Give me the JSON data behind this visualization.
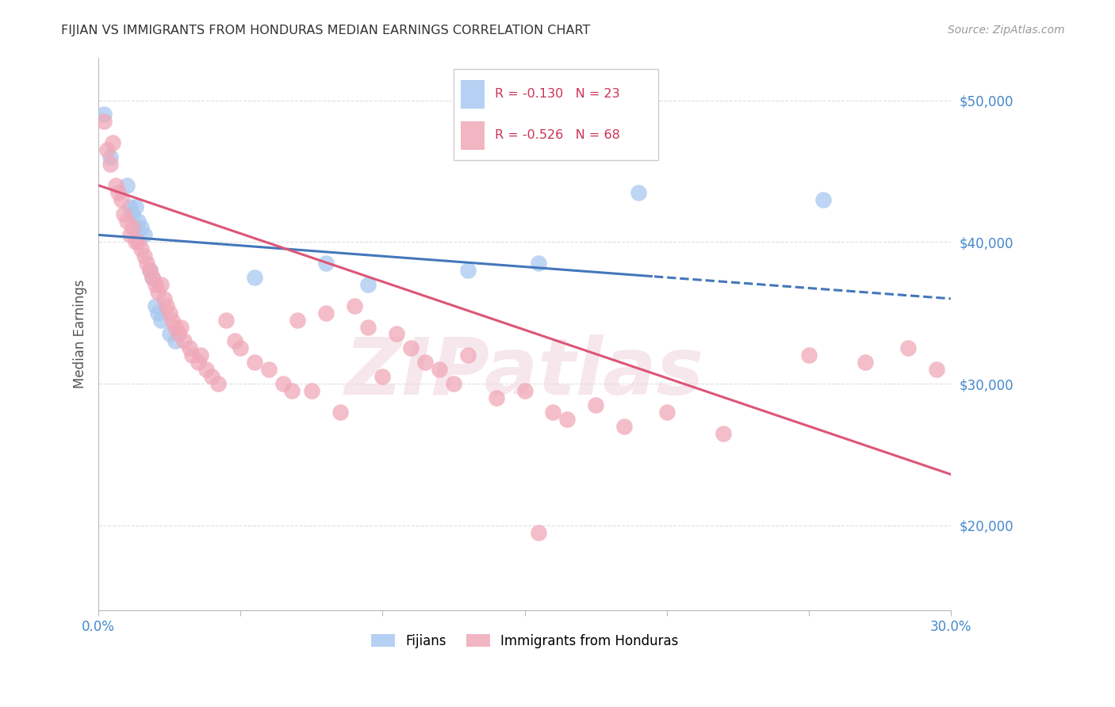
{
  "title": "FIJIAN VS IMMIGRANTS FROM HONDURAS MEDIAN EARNINGS CORRELATION CHART",
  "source": "Source: ZipAtlas.com",
  "ylabel": "Median Earnings",
  "x_min": 0.0,
  "x_max": 0.3,
  "y_min": 14000,
  "y_max": 53000,
  "yticks": [
    20000,
    30000,
    40000,
    50000
  ],
  "ytick_labels": [
    "$20,000",
    "$30,000",
    "$40,000",
    "$50,000"
  ],
  "xticks": [
    0.0,
    0.05,
    0.1,
    0.15,
    0.2,
    0.25,
    0.3
  ],
  "fijian_color": "#a8c8f0",
  "honduras_color": "#f0a8b8",
  "trend_blue": "#4477bb",
  "trend_pink": "#dd5577",
  "fijian_R": -0.13,
  "fijian_N": 23,
  "honduras_R": -0.526,
  "honduras_N": 68,
  "fijian_points": [
    [
      0.002,
      49000
    ],
    [
      0.004,
      46000
    ],
    [
      0.01,
      44000
    ],
    [
      0.011,
      42500
    ],
    [
      0.012,
      42000
    ],
    [
      0.013,
      42500
    ],
    [
      0.014,
      41500
    ],
    [
      0.015,
      41000
    ],
    [
      0.016,
      40500
    ],
    [
      0.018,
      38000
    ],
    [
      0.019,
      37500
    ],
    [
      0.02,
      35500
    ],
    [
      0.021,
      35000
    ],
    [
      0.022,
      34500
    ],
    [
      0.025,
      33500
    ],
    [
      0.027,
      33000
    ],
    [
      0.055,
      37500
    ],
    [
      0.08,
      38500
    ],
    [
      0.095,
      37000
    ],
    [
      0.13,
      38000
    ],
    [
      0.155,
      38500
    ],
    [
      0.19,
      43500
    ],
    [
      0.255,
      43000
    ]
  ],
  "honduras_points": [
    [
      0.002,
      48500
    ],
    [
      0.003,
      46500
    ],
    [
      0.004,
      45500
    ],
    [
      0.005,
      47000
    ],
    [
      0.006,
      44000
    ],
    [
      0.007,
      43500
    ],
    [
      0.008,
      43000
    ],
    [
      0.009,
      42000
    ],
    [
      0.01,
      41500
    ],
    [
      0.011,
      40500
    ],
    [
      0.012,
      41000
    ],
    [
      0.013,
      40000
    ],
    [
      0.014,
      40000
    ],
    [
      0.015,
      39500
    ],
    [
      0.016,
      39000
    ],
    [
      0.017,
      38500
    ],
    [
      0.018,
      38000
    ],
    [
      0.019,
      37500
    ],
    [
      0.02,
      37000
    ],
    [
      0.021,
      36500
    ],
    [
      0.022,
      37000
    ],
    [
      0.023,
      36000
    ],
    [
      0.024,
      35500
    ],
    [
      0.025,
      35000
    ],
    [
      0.026,
      34500
    ],
    [
      0.027,
      34000
    ],
    [
      0.028,
      33500
    ],
    [
      0.029,
      34000
    ],
    [
      0.03,
      33000
    ],
    [
      0.032,
      32500
    ],
    [
      0.033,
      32000
    ],
    [
      0.035,
      31500
    ],
    [
      0.036,
      32000
    ],
    [
      0.038,
      31000
    ],
    [
      0.04,
      30500
    ],
    [
      0.042,
      30000
    ],
    [
      0.045,
      34500
    ],
    [
      0.048,
      33000
    ],
    [
      0.05,
      32500
    ],
    [
      0.055,
      31500
    ],
    [
      0.06,
      31000
    ],
    [
      0.065,
      30000
    ],
    [
      0.068,
      29500
    ],
    [
      0.07,
      34500
    ],
    [
      0.075,
      29500
    ],
    [
      0.08,
      35000
    ],
    [
      0.085,
      28000
    ],
    [
      0.09,
      35500
    ],
    [
      0.095,
      34000
    ],
    [
      0.1,
      30500
    ],
    [
      0.105,
      33500
    ],
    [
      0.11,
      32500
    ],
    [
      0.115,
      31500
    ],
    [
      0.12,
      31000
    ],
    [
      0.125,
      30000
    ],
    [
      0.13,
      32000
    ],
    [
      0.14,
      29000
    ],
    [
      0.15,
      29500
    ],
    [
      0.155,
      19500
    ],
    [
      0.16,
      28000
    ],
    [
      0.165,
      27500
    ],
    [
      0.175,
      28500
    ],
    [
      0.185,
      27000
    ],
    [
      0.2,
      28000
    ],
    [
      0.22,
      26500
    ],
    [
      0.25,
      32000
    ],
    [
      0.27,
      31500
    ],
    [
      0.285,
      32500
    ],
    [
      0.295,
      31000
    ]
  ],
  "background_color": "#ffffff",
  "grid_color": "#dddddd",
  "axis_color": "#bbbbbb",
  "title_color": "#333333",
  "source_color": "#999999",
  "ytick_color": "#4488cc",
  "xtick_color": "#4488cc",
  "watermark_text": "ZIPatlas",
  "watermark_color": "#f0d8e0",
  "watermark_alpha": 0.6,
  "fijian_trend_intercept": 40500,
  "fijian_trend_slope": -15000,
  "honduras_trend_intercept": 44000,
  "honduras_trend_slope": -68000
}
